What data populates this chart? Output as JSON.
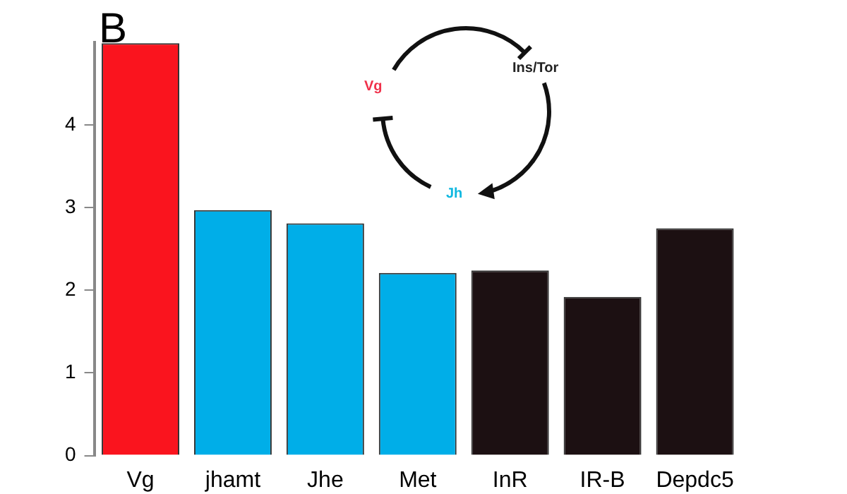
{
  "chart_data": {
    "type": "bar",
    "title": "B",
    "categories": [
      "Vg",
      "jhamt",
      "Jhe",
      "Met",
      "InR",
      "IR-B",
      "Depdc5"
    ],
    "values": [
      4.99,
      2.97,
      2.81,
      2.21,
      2.24,
      1.92,
      2.75
    ],
    "colors": [
      "#fa141e",
      "#00aee8",
      "#00aee8",
      "#00aee8",
      "#1c1012",
      "#1c1012",
      "#1c1012"
    ],
    "ylim": [
      0,
      5
    ],
    "yticks": [
      0,
      1,
      2,
      3,
      4
    ],
    "grid": false,
    "legend": false,
    "annotations": [
      "Vg",
      "Ins/Tor",
      "Jh"
    ]
  }
}
